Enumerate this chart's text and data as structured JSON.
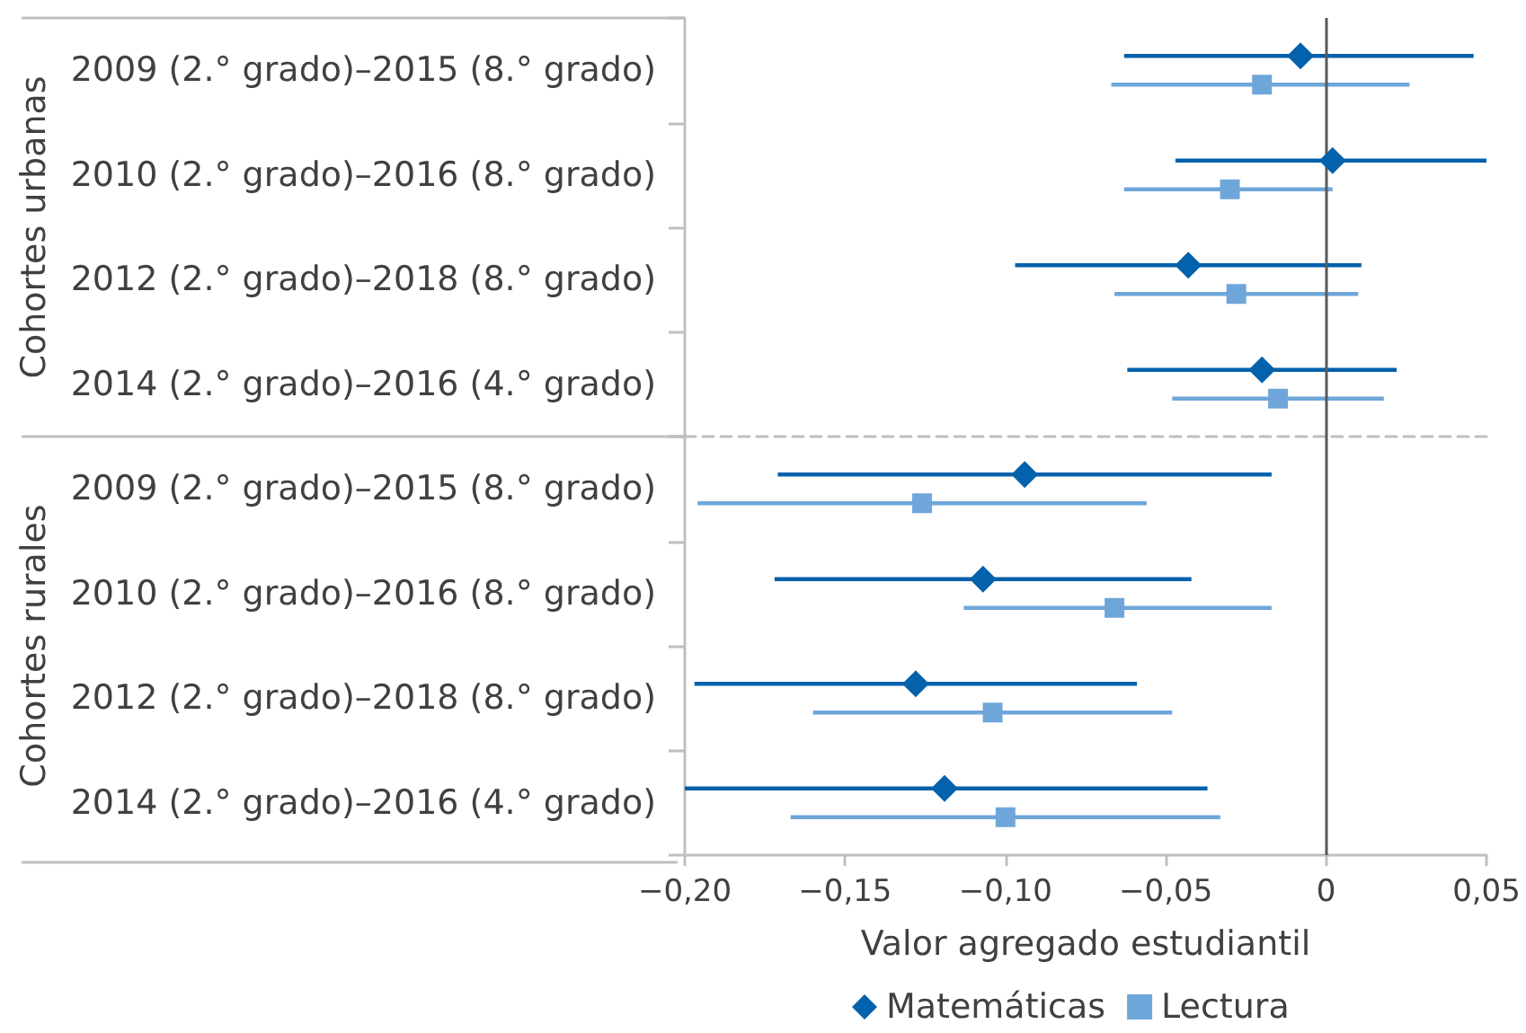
{
  "chart_data": [
    {
      "type": "scatter",
      "orientation": "horizontal",
      "ylabel": "Cohortes urbanas",
      "categories": [
        "2009 (2.° grado)–2015 (8.° grado)",
        "2010 (2.° grado)–2016 (8.° grado)",
        "2012 (2.° grado)–2018 (8.° grado)",
        "2014 (2.° grado)–2016 (4.° grado)"
      ],
      "series": [
        {
          "color": "#0461ab",
          "marker": "diamond",
          "values": [
            -0.008,
            0.002,
            -0.043,
            -0.02
          ],
          "errors": [
            [
              -0.063,
              0.046
            ],
            [
              -0.047,
              0.05
            ],
            [
              -0.097,
              0.011
            ],
            [
              -0.062,
              0.022
            ]
          ]
        },
        {
          "color": "#6fa6da",
          "marker": "square",
          "values": [
            -0.02,
            -0.03,
            -0.028,
            -0.015
          ],
          "errors": [
            [
              -0.067,
              0.026
            ],
            [
              -0.063,
              0.002
            ],
            [
              -0.066,
              0.01
            ],
            [
              -0.048,
              0.018
            ]
          ]
        }
      ],
      "xlim": [
        -0.2,
        0.05
      ],
      "tick_labels": "y",
      "ref_lines": [
        {
          "axis": "x",
          "value": 0,
          "color": "#595959",
          "line_style": "solid"
        }
      ]
    },
    {
      "type": "scatter",
      "orientation": "horizontal",
      "ylabel": "Cohortes rurales",
      "categories": [
        "2009 (2.° grado)–2015 (8.° grado)",
        "2010 (2.° grado)–2016 (8.° grado)",
        "2012 (2.° grado)–2018 (8.° grado)",
        "2014 (2.° grado)–2016 (4.° grado)"
      ],
      "series": [
        {
          "name": "Matemáticas",
          "color": "#0461ab",
          "marker": "diamond",
          "values": [
            -0.094,
            -0.107,
            -0.128,
            -0.119
          ],
          "errors": [
            [
              -0.171,
              -0.017
            ],
            [
              -0.172,
              -0.042
            ],
            [
              -0.197,
              -0.059
            ],
            [
              -0.2,
              -0.037
            ]
          ]
        },
        {
          "name": "Lectura",
          "color": "#6fa6da",
          "marker": "square",
          "values": [
            -0.126,
            -0.066,
            -0.104,
            -0.1
          ],
          "errors": [
            [
              -0.196,
              -0.056
            ],
            [
              -0.113,
              -0.017
            ],
            [
              -0.16,
              -0.048
            ],
            [
              -0.167,
              -0.033
            ]
          ]
        }
      ],
      "xlabel": "Valor agregado estudiantil",
      "xlim": [
        -0.2,
        0.05
      ],
      "xticks": [
        {
          "value": -0.2,
          "label": "−0,20"
        },
        {
          "value": -0.15,
          "label": "−0,15"
        },
        {
          "value": -0.1,
          "label": "−0,10"
        },
        {
          "value": -0.05,
          "label": "−0,05"
        },
        0,
        {
          "value": 0.05,
          "label": "0,05"
        }
      ],
      "ref_lines": [
        {
          "axis": "x",
          "value": 0,
          "color": "#595959",
          "line_style": "solid"
        }
      ],
      "legend": "bottom"
    }
  ]
}
